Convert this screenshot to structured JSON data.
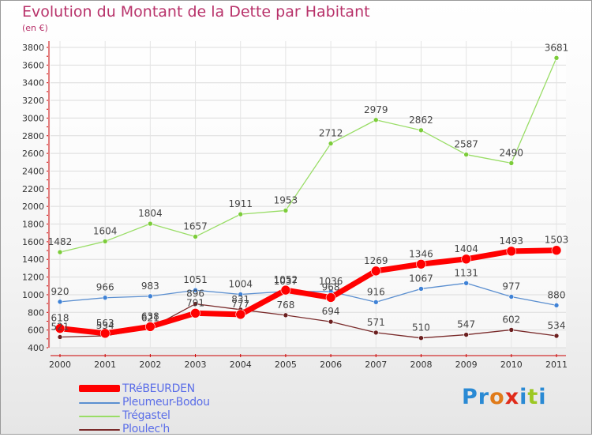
{
  "page": {
    "title": "Evolution du Montant de la Dette par Habitant",
    "subtitle": "(en €)"
  },
  "chart_data": {
    "type": "line",
    "title": "Evolution du Montant de la Dette par Habitant",
    "subtitle": "(en €)",
    "xlabel": "",
    "ylabel": "",
    "categories": [
      "2000",
      "2001",
      "2002",
      "2003",
      "2004",
      "2005",
      "2006",
      "2007",
      "2008",
      "2009",
      "2010",
      "2011"
    ],
    "yticks": [
      "400",
      "600",
      "800",
      "1000",
      "1200",
      "1400",
      "1600",
      "1800",
      "2000",
      "2200",
      "2400",
      "2600",
      "2800",
      "3000",
      "3200",
      "3400",
      "3600",
      "3800"
    ],
    "ylim": [
      400,
      3800
    ],
    "grid": true,
    "legend_position": "bottom-left",
    "series": [
      {
        "name": "Ploulec'h",
        "color": "#7a2b2b",
        "point_color": "#6b1f1f",
        "values": [
          521,
          534,
          621,
          896,
          831,
          768,
          694,
          571,
          510,
          547,
          602,
          534
        ],
        "labels": [
          "521",
          "534",
          "621",
          "896",
          "831",
          "768",
          "694",
          "571",
          "510",
          "547",
          "602",
          "534"
        ]
      },
      {
        "name": "Pleumeur-Bodou",
        "color": "#5b8fd0",
        "point_color": "#3f82d6",
        "values": [
          920,
          966,
          983,
          1051,
          1004,
          1037,
          1036,
          916,
          1067,
          1131,
          977,
          880
        ],
        "labels": [
          "920",
          "966",
          "983",
          "1051",
          "1004",
          "1037",
          "1036",
          "916",
          "1067",
          "1131",
          "977",
          "880"
        ]
      },
      {
        "name": "Trégastel",
        "color": "#99dd66",
        "point_color": "#7ccc3a",
        "values": [
          1482,
          1604,
          1804,
          1657,
          1911,
          1953,
          2712,
          2979,
          2862,
          2587,
          2490,
          3681
        ],
        "labels": [
          "1482",
          "1604",
          "1804",
          "1657",
          "1911",
          "1953",
          "2712",
          "2979",
          "2862",
          "2587",
          "2490",
          "3681"
        ]
      },
      {
        "name": "TRéBEURDEN",
        "color": "#ff0000",
        "point_color": "#ff0000",
        "values": [
          618,
          563,
          638,
          791,
          777,
          1052,
          968,
          1269,
          1346,
          1404,
          1493,
          1503
        ],
        "labels": [
          "618",
          "563",
          "638",
          "791",
          "777",
          "1052",
          "968",
          "1269",
          "1346",
          "1404",
          "1493",
          "1503"
        ]
      }
    ]
  },
  "legend": {
    "items": [
      {
        "label": "TRéBEURDEN",
        "color": "#ff0000"
      },
      {
        "label": "Pleumeur-Bodou",
        "color": "#5b8fd0"
      },
      {
        "label": "Trégastel",
        "color": "#99dd66"
      },
      {
        "label": "Ploulec'h",
        "color": "#7a2b2b"
      }
    ]
  },
  "logo": {
    "letters": [
      "P",
      "r",
      "o",
      "x",
      "i",
      "t",
      "i"
    ],
    "colors": [
      "#2a8ad4",
      "#2a8ad4",
      "#e07b1a",
      "#e02b1a",
      "#2a8ad4",
      "#9cc823",
      "#2a8ad4"
    ]
  }
}
